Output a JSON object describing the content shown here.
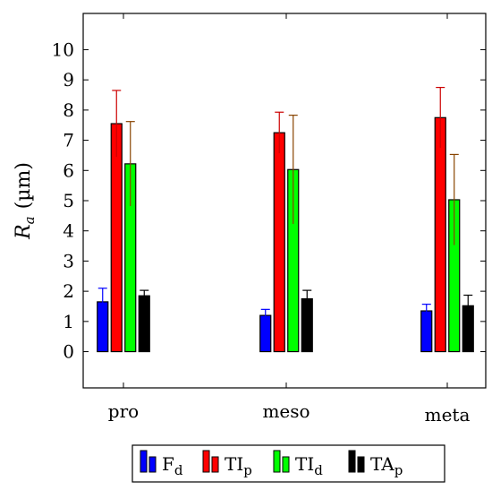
{
  "chart_data": {
    "type": "bar",
    "categories": [
      "pro",
      "meso",
      "meta"
    ],
    "ylabel": "R_a (µm)",
    "ylabel_symbol": "R",
    "ylabel_subscript": "a",
    "ylabel_unit": "(µm)",
    "ylim": [
      -1.2,
      11.2
    ],
    "yticks": [
      0,
      1,
      2,
      3,
      4,
      5,
      6,
      7,
      8,
      9,
      10
    ],
    "grid": false,
    "legend_position": "bottom-center",
    "series": [
      {
        "name": "F_d",
        "base": "F",
        "sub": "d",
        "color": "#0000ff",
        "error_color": "#0000ff",
        "values": [
          1.65,
          1.2,
          1.35
        ],
        "errors": [
          0.45,
          0.2,
          0.22
        ]
      },
      {
        "name": "TI_p",
        "base": "TI",
        "sub": "p",
        "color": "#ff0000",
        "error_color": "#cc0000",
        "values": [
          7.55,
          7.25,
          7.75
        ],
        "errors": [
          1.1,
          0.68,
          1.0
        ]
      },
      {
        "name": "TI_d",
        "base": "TI",
        "sub": "d",
        "color": "#00ff00",
        "error_color": "#884400",
        "values": [
          6.22,
          6.03,
          5.03
        ],
        "errors": [
          1.4,
          1.8,
          1.5
        ]
      },
      {
        "name": "TA_p",
        "base": "TA",
        "sub": "p",
        "color": "#000000",
        "error_color": "#000000",
        "values": [
          1.85,
          1.75,
          1.52
        ],
        "errors": [
          0.18,
          0.28,
          0.35
        ]
      }
    ]
  }
}
